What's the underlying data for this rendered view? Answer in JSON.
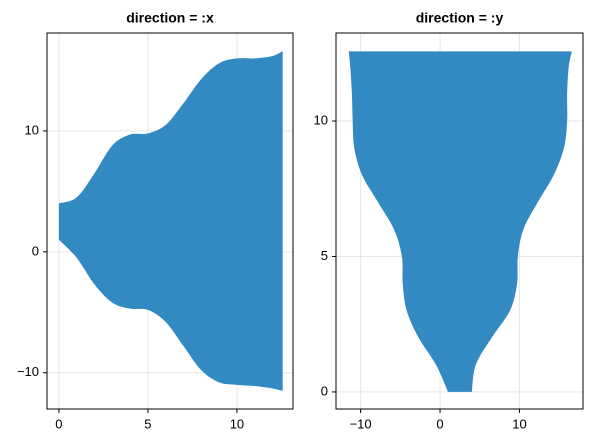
{
  "chart_data": [
    {
      "type": "band",
      "title": "direction = :x",
      "band_direction": "x",
      "color": "#338ac2",
      "grid": true,
      "x": [
        0,
        1,
        2,
        3,
        4,
        5,
        6,
        7,
        8,
        9,
        10,
        11,
        12,
        12.57
      ],
      "lower": [
        1,
        -0.5,
        -2.7,
        -4.2,
        -4.7,
        -4.8,
        -5.8,
        -7.8,
        -9.8,
        -10.8,
        -11,
        -11.1,
        -11.3,
        -11.5
      ],
      "upper": [
        4,
        4.5,
        6.5,
        8.8,
        9.7,
        9.8,
        10.5,
        12.3,
        14.3,
        15.6,
        16,
        16,
        16.2,
        16.6
      ],
      "xlim": [
        -0.67,
        13.15
      ],
      "ylim": [
        -13,
        18.1
      ],
      "xticks": [
        0,
        5,
        10
      ],
      "yticks": [
        {
          "value": -10,
          "label": "−10"
        },
        0,
        10
      ]
    },
    {
      "type": "band",
      "title": "direction = :y",
      "band_direction": "y",
      "color": "#338ac2",
      "grid": true,
      "x": [
        0,
        1,
        2,
        3,
        4,
        5,
        6,
        7,
        8,
        9,
        10,
        11,
        12,
        12.57
      ],
      "lower": [
        1,
        -0.5,
        -2.7,
        -4.2,
        -4.7,
        -4.8,
        -5.8,
        -7.8,
        -9.8,
        -10.8,
        -11,
        -11.1,
        -11.3,
        -11.5
      ],
      "upper": [
        4,
        4.5,
        6.5,
        8.8,
        9.7,
        9.8,
        10.5,
        12.3,
        14.3,
        15.6,
        16,
        16,
        16.2,
        16.6
      ],
      "xlim": [
        -13.1,
        18
      ],
      "ylim": [
        -0.63,
        13.25
      ],
      "xticks": [
        {
          "value": -10,
          "label": "−10"
        },
        0,
        10
      ],
      "yticks": [
        0,
        5,
        10
      ]
    }
  ]
}
